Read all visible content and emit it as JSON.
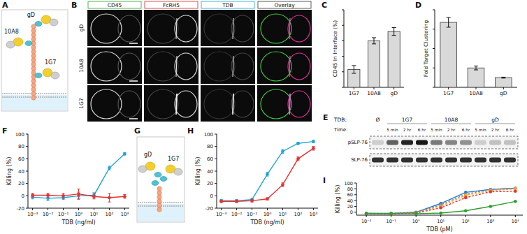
{
  "panel_letters": [
    "A",
    "B",
    "C",
    "D",
    "E",
    "F",
    "G",
    "H",
    "I"
  ],
  "diagram_a": {
    "labels": [
      "gD",
      "10A8",
      "1G7"
    ]
  },
  "microscopy": {
    "columns": [
      "CD45",
      "FcRH5",
      "TDB",
      "Overlay"
    ],
    "rows": [
      "gD",
      "10A8",
      "1G7"
    ]
  },
  "blot": {
    "treatment_label": "TDB:",
    "time_label": "Time:",
    "groups": [
      {
        "label": "Ø",
        "times": [
          "-"
        ]
      },
      {
        "label": "1G7",
        "times": [
          "5 min",
          "2 hr",
          "6 hr"
        ]
      },
      {
        "label": "10A8",
        "times": [
          "5 min",
          "2 hr",
          "6 hr"
        ]
      },
      {
        "label": "gD",
        "times": [
          "5 min",
          "2 hr",
          "6 hr"
        ]
      }
    ],
    "rows": [
      {
        "label": "pSLP-76",
        "band_intensity": [
          0.15,
          0.6,
          0.85,
          0.9,
          0.5,
          0.45,
          0.4,
          0.15,
          0.2,
          0.2
        ]
      },
      {
        "label": "SLP-76",
        "band_intensity": [
          0.8,
          0.8,
          0.8,
          0.8,
          0.8,
          0.8,
          0.8,
          0.8,
          0.8,
          0.8
        ]
      }
    ]
  },
  "diagram_g": {
    "labels": [
      "gD",
      "1G7"
    ]
  },
  "chart_data": [
    {
      "type": "bar",
      "y_label": "CD45 In Interface (%)",
      "categories": [
        "1G7",
        "10A8",
        "gD"
      ],
      "values": [
        23,
        60,
        72
      ],
      "errors": [
        5,
        4,
        5
      ],
      "color": "#d9d9d9",
      "ylim": [
        0,
        100
      ],
      "yticks": [
        0,
        20,
        40,
        60,
        80,
        100
      ],
      "tick_labels": "x"
    },
    {
      "type": "bar",
      "y_label": "Fold Target Clustering",
      "categories": [
        "1G7",
        "10A8",
        "gD"
      ],
      "values": [
        6.7,
        2.0,
        1.0
      ],
      "errors": [
        0.5,
        0.2,
        0.05
      ],
      "color": "#d9d9d9",
      "ylim": [
        0,
        8
      ],
      "yticks": [
        0,
        2,
        4,
        6,
        8
      ],
      "tick_labels": "x"
    },
    {
      "type": "line",
      "x_label": "TDB (ng/ml)",
      "y_label": "Killing (%)",
      "log": "x",
      "xlim": [
        0.0005,
        2000
      ],
      "xticks": [
        {
          "value": 0.001,
          "label": "10⁻³"
        },
        {
          "value": 0.01,
          "label": "10⁻²"
        },
        {
          "value": 0.1,
          "label": "10⁻¹"
        },
        {
          "value": 1,
          "label": "10⁰"
        },
        {
          "value": 10,
          "label": "10¹"
        },
        {
          "value": 100,
          "label": "10²"
        },
        {
          "value": 1000,
          "label": "10³"
        }
      ],
      "ylim": [
        -20,
        100
      ],
      "yticks": [
        -20,
        0,
        20,
        40,
        60,
        80,
        100
      ],
      "x": [
        0.001,
        0.01,
        0.1,
        1,
        10,
        100,
        1000
      ],
      "series": [
        {
          "color": "#1fa3d9",
          "marker": "circle",
          "line_style": "solid",
          "values": [
            -2,
            -4,
            -3,
            0,
            1,
            45,
            68
          ],
          "errors": [
            3,
            4,
            3,
            6,
            4,
            3,
            2
          ]
        },
        {
          "color": "#e8312f",
          "marker": "circle",
          "line_style": "solid",
          "values": [
            1,
            1,
            0,
            3,
            -1,
            -3,
            -1
          ],
          "errors": [
            3,
            3,
            4,
            8,
            4,
            7,
            3
          ]
        }
      ]
    },
    {
      "type": "line",
      "x_label": "TDB (ng/ml)",
      "y_label": "Killing (%)",
      "log": "x",
      "xlim": [
        0.0005,
        2000
      ],
      "xticks": [
        {
          "value": 0.001,
          "label": "10⁻³"
        },
        {
          "value": 0.01,
          "label": "10⁻²"
        },
        {
          "value": 0.1,
          "label": "10⁻¹"
        },
        {
          "value": 1,
          "label": "10⁰"
        },
        {
          "value": 10,
          "label": "10¹"
        },
        {
          "value": 100,
          "label": "10²"
        },
        {
          "value": 1000,
          "label": "10³"
        }
      ],
      "ylim": [
        -20,
        100
      ],
      "yticks": [
        -20,
        0,
        20,
        40,
        60,
        80,
        100
      ],
      "x": [
        0.001,
        0.01,
        0.1,
        1,
        10,
        100,
        1000
      ],
      "series": [
        {
          "color": "#1fa3d9",
          "marker": "circle",
          "line_style": "solid",
          "values": [
            -8,
            -8,
            -6,
            35,
            72,
            85,
            88
          ],
          "errors": [
            2,
            2,
            2,
            3,
            3,
            2,
            2
          ]
        },
        {
          "color": "#e8312f",
          "marker": "circle",
          "line_style": "solid",
          "values": [
            -9,
            -9,
            -8,
            -5,
            18,
            60,
            77
          ],
          "errors": [
            2,
            2,
            2,
            2,
            3,
            3,
            3
          ]
        }
      ]
    },
    {
      "type": "line",
      "x_label": "TDB (pM)",
      "y_label": "Killing (%)",
      "log": "x",
      "xlim": [
        0.004,
        20000
      ],
      "xticks": [
        {
          "value": 0.01,
          "label": "10⁻²"
        },
        {
          "value": 0.1,
          "label": "10⁻¹"
        },
        {
          "value": 1,
          "label": "10⁰"
        },
        {
          "value": 10,
          "label": "10¹"
        },
        {
          "value": 100,
          "label": "10²"
        },
        {
          "value": 1000,
          "label": "10³"
        },
        {
          "value": 10000,
          "label": "10⁴"
        }
      ],
      "ylim": [
        -10,
        100
      ],
      "yticks": [
        0,
        20,
        40,
        60,
        80,
        100
      ],
      "x": [
        0.01,
        0.1,
        1,
        10,
        100,
        1000,
        10000
      ],
      "series": [
        {
          "color": "#1f77d4",
          "marker": "circle",
          "line_style": "solid",
          "values": [
            -4,
            -4,
            0,
            30,
            68,
            78,
            82
          ]
        },
        {
          "color": "#8c8c8c",
          "marker": "circle",
          "line_style": "dashed",
          "values": [
            -4,
            -4,
            -1,
            25,
            62,
            78,
            82
          ]
        },
        {
          "color": "#f5a623",
          "marker": "circle",
          "line_style": "dashed",
          "values": [
            -4,
            -5,
            -2,
            20,
            58,
            74,
            80
          ]
        },
        {
          "color": "#e8312f",
          "marker": "circle",
          "line_style": "dashed",
          "values": [
            -5,
            -5,
            -3,
            15,
            50,
            70,
            72
          ]
        },
        {
          "color": "#2ca02c",
          "marker": "circle",
          "line_style": "solid",
          "values": [
            -4,
            -5,
            -5,
            -3,
            5,
            20,
            37
          ]
        }
      ]
    }
  ]
}
